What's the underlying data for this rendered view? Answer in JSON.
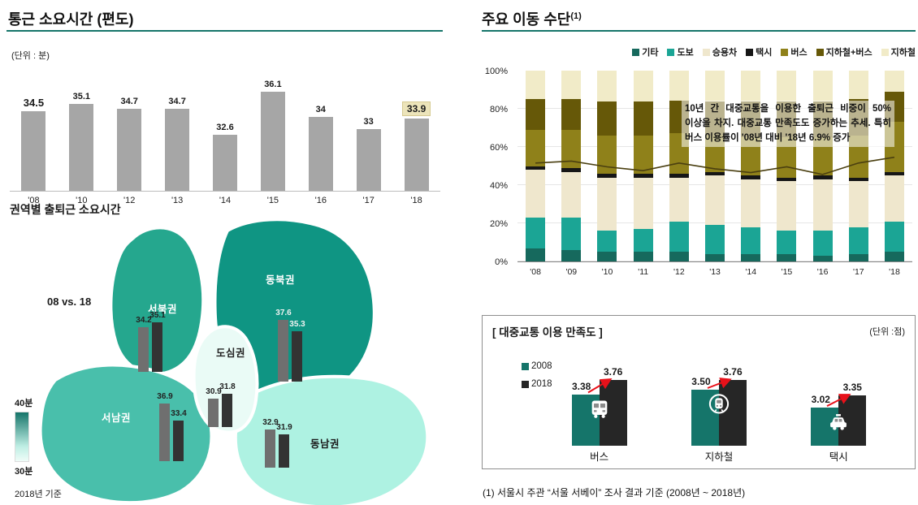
{
  "left": {
    "title": "통근 소요시간 (편도)",
    "unit": "(단위 : 분)",
    "map_title": "권역별 출퇴근 소요시간",
    "vs_label": "08  vs.  18",
    "legend_top": "40분",
    "legend_bottom": "30분",
    "base_note": "2018년 기준"
  },
  "right": {
    "title": "주요 이동 수단",
    "title_sup": "(1)",
    "annotation": "10년 간 대중교통을 이용한 출퇴근 비중이 50% 이상을 차지. 대중교통 만족도도 증가하는 추세. 특히 버스 이용률이 '08년 대비 '18년 6.9% 증가",
    "footnote": "(1) 서울시 주관 “서울 서베이” 조사 결과 기준 (2008년 ~ 2018년)"
  },
  "chart_data": [
    {
      "type": "bar",
      "title": "통근 소요시간 (편도)",
      "unit": "분",
      "categories": [
        "'08",
        "'10",
        "'12",
        "'13",
        "'14",
        "'15",
        "'16",
        "'17",
        "'18"
      ],
      "values": [
        34.5,
        35.1,
        34.7,
        34.7,
        32.6,
        36.1,
        34,
        33,
        33.9
      ],
      "highlight_index": 8,
      "bar_color": "#a6a6a6",
      "ylim": [
        28,
        37
      ]
    },
    {
      "type": "bar",
      "stacked": true,
      "title": "주요 이동 수단",
      "categories": [
        "'08",
        "'09",
        "'10",
        "'11",
        "'12",
        "'13",
        "'14",
        "'15",
        "'16",
        "'17",
        "'18"
      ],
      "y_ticks": [
        "100%",
        "80%",
        "60%",
        "40%",
        "20%",
        "0%"
      ],
      "ylim": [
        0,
        100
      ],
      "series": [
        {
          "name": "기타",
          "color": "#16695d",
          "values": [
            7,
            6,
            5,
            5,
            5,
            4,
            4,
            4,
            3,
            4,
            5
          ]
        },
        {
          "name": "도보",
          "color": "#1ba595",
          "values": [
            16,
            17,
            11,
            12,
            16,
            15,
            14,
            12,
            13,
            14,
            16
          ]
        },
        {
          "name": "승용차",
          "color": "#efe7cd",
          "values": [
            25,
            24,
            28,
            27,
            23,
            26,
            25,
            26,
            27,
            24,
            24
          ]
        },
        {
          "name": "택시",
          "color": "#161616",
          "values": [
            2,
            2,
            2,
            2,
            2,
            2,
            2,
            2,
            2,
            2,
            2
          ]
        },
        {
          "name": "버스",
          "color": "#8f811a",
          "values": [
            19,
            20,
            20,
            20,
            21,
            19,
            20,
            21,
            20,
            22,
            26
          ]
        },
        {
          "name": "지하철+버스",
          "color": "#665808",
          "values": [
            16,
            16,
            18,
            18,
            17,
            18,
            19,
            19,
            19,
            19,
            16
          ]
        },
        {
          "name": "지하철",
          "color": "#f1ebc8",
          "values": [
            15,
            15,
            16,
            16,
            16,
            16,
            16,
            16,
            16,
            15,
            11
          ]
        }
      ],
      "line_overlay": {
        "color": "#4a3f10",
        "values": [
          52,
          53,
          50,
          48,
          52,
          49,
          47,
          50,
          46,
          52,
          55
        ]
      }
    },
    {
      "type": "bar",
      "title": "[ 대중교통 이용 만족도 ]",
      "unit_label": "(단위 :점)",
      "categories": [
        "버스",
        "지하철",
        "택시"
      ],
      "icons": [
        "bus",
        "subway",
        "taxi"
      ],
      "legend": [
        {
          "label": "2008",
          "color": "#15756a"
        },
        {
          "label": "2018",
          "color": "#262626"
        }
      ],
      "series": [
        {
          "name": "2008",
          "values": [
            3.38,
            3.5,
            3.02
          ]
        },
        {
          "name": "2018",
          "values": [
            3.76,
            3.76,
            3.35
          ]
        }
      ],
      "increase_arrow_color": "#e8111a"
    },
    {
      "type": "map-bars",
      "title": "권역별 출퇴근 소요시간",
      "note": "2018년 기준",
      "scale": {
        "max_label": "40분",
        "min_label": "30분"
      },
      "years": [
        "08",
        "18"
      ],
      "regions": [
        {
          "name": "서북권",
          "values": [
            34.2,
            35.1
          ],
          "color": "#25a78e"
        },
        {
          "name": "동북권",
          "values": [
            37.6,
            35.3
          ],
          "color": "#0f9583"
        },
        {
          "name": "도심권",
          "values": [
            30.9,
            31.8
          ],
          "color": "#eafbf6"
        },
        {
          "name": "서남권",
          "values": [
            36.9,
            33.4
          ],
          "color": "#49bfab"
        },
        {
          "name": "동남권",
          "values": [
            32.9,
            31.9
          ],
          "color": "#aef2e2"
        }
      ],
      "bar_colors": [
        "#6f6f6f",
        "#333333"
      ]
    }
  ]
}
